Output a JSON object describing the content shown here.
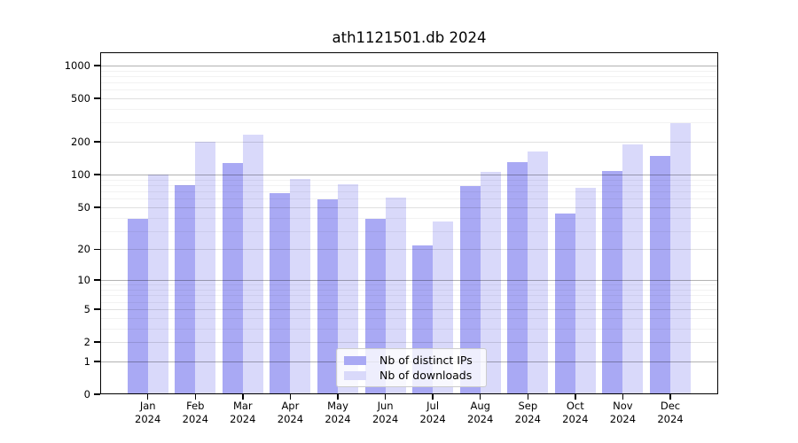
{
  "chart_data": {
    "type": "bar",
    "title": "ath1121501.db 2024",
    "categories": [
      "Jan",
      "Feb",
      "Mar",
      "Apr",
      "May",
      "Jun",
      "Jul",
      "Aug",
      "Sep",
      "Oct",
      "Nov",
      "Dec"
    ],
    "year": "2024",
    "series": [
      {
        "name": "Nb of distinct IPs",
        "values": [
          39,
          80,
          128,
          67,
          59,
          39,
          22,
          79,
          131,
          44,
          108,
          150
        ],
        "color": "#a9a9f4"
      },
      {
        "name": "Nb of downloads",
        "values": [
          101,
          202,
          235,
          91,
          81,
          61,
          37,
          106,
          162,
          76,
          189,
          298
        ],
        "color": "#d9d9fa"
      }
    ],
    "y_ticks": [
      0,
      1,
      2,
      5,
      10,
      20,
      50,
      100,
      200,
      500,
      1000
    ],
    "ylim": [
      0,
      1000
    ],
    "yscale": "log10(value+1)",
    "xlabel": "",
    "ylabel": "",
    "grid": true,
    "legend_position": "inside-bottom-center"
  },
  "colors": {
    "bar_distinct_ips": "#a9a9f4",
    "bar_downloads": "#d9d9fa",
    "axis": "#000000",
    "grid_major": "#b5b5b5",
    "grid_sub": "#e3e3e3",
    "grid_minor": "#f2f2f2",
    "legend_border": "#cccccc"
  }
}
